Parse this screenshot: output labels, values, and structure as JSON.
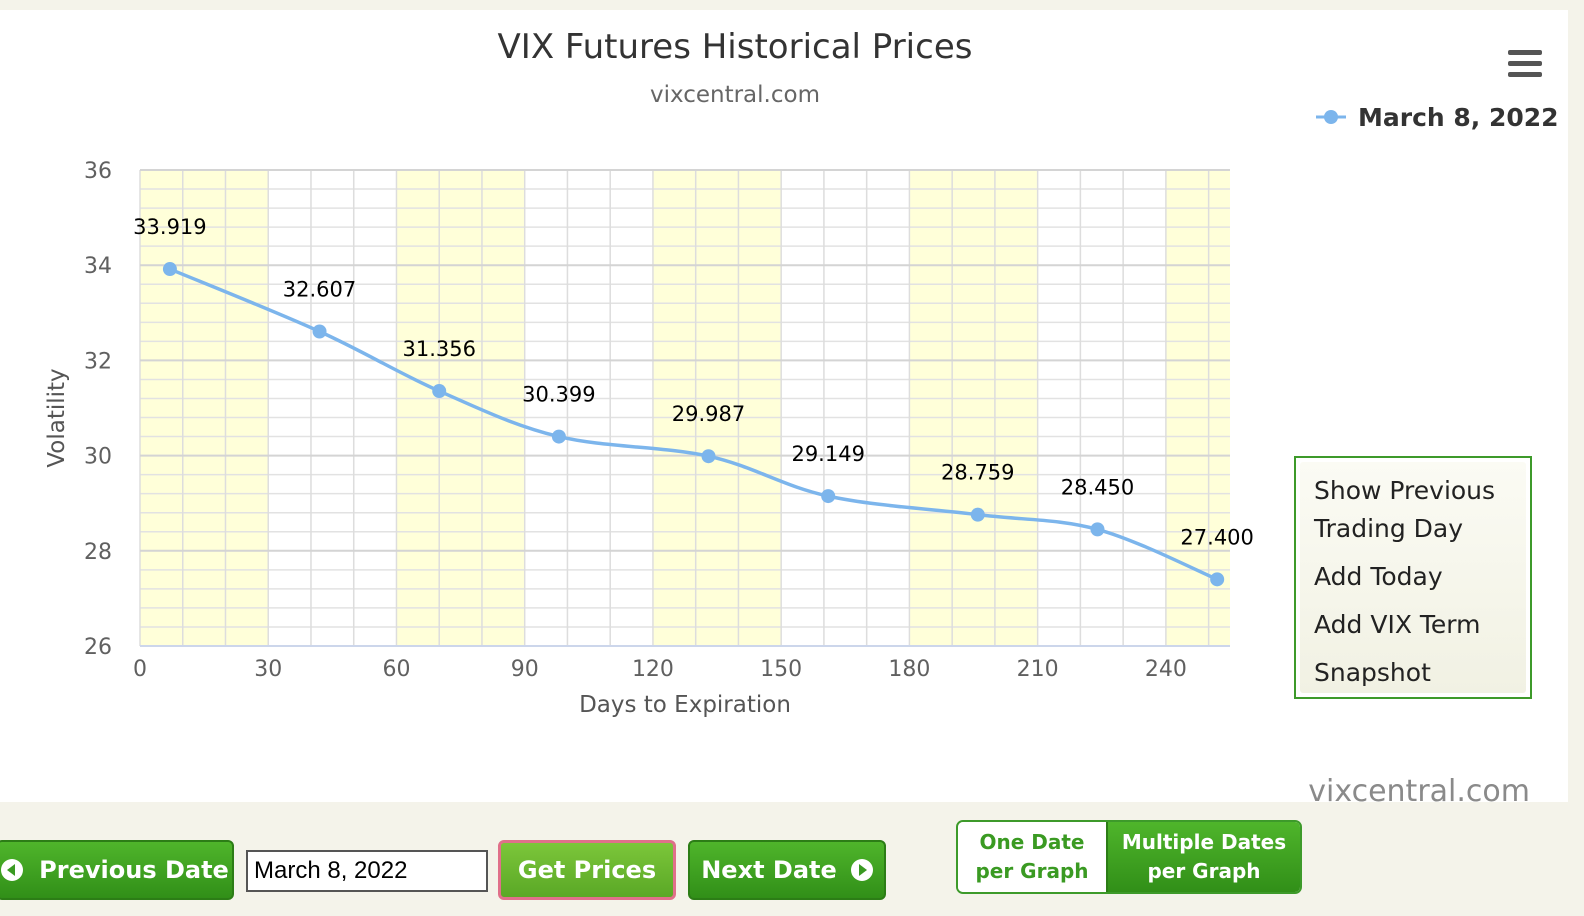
{
  "chart_data": {
    "type": "line",
    "title": "VIX Futures Historical Prices",
    "subtitle": "vixcentral.com",
    "xlabel": "Days to Expiration",
    "ylabel": "Volatility",
    "xlim": [
      0,
      255
    ],
    "ylim": [
      26,
      36
    ],
    "xticks": [
      0,
      30,
      60,
      90,
      120,
      150,
      180,
      210,
      240
    ],
    "yticks": [
      26,
      28,
      30,
      32,
      34,
      36
    ],
    "grid": true,
    "legend_position": "top-right",
    "series": [
      {
        "name": "March 8, 2022",
        "color": "#7cb5ec",
        "x": [
          7,
          42,
          70,
          98,
          133,
          161,
          196,
          224,
          252
        ],
        "y": [
          33.919,
          32.607,
          31.356,
          30.399,
          29.987,
          29.149,
          28.759,
          28.45,
          27.4
        ],
        "labels": [
          "33.919",
          "32.607",
          "31.356",
          "30.399",
          "29.987",
          "29.149",
          "28.759",
          "28.450",
          "27.400"
        ]
      }
    ]
  },
  "menu": {
    "items": [
      "Show Previous\nTrading Day",
      "Add Today",
      "Add VIX Term",
      "Snapshot"
    ]
  },
  "credit": "vixcentral.com",
  "controls": {
    "previous_label": "Previous Date",
    "date_value": "March 8, 2022",
    "get_prices_label": "Get Prices",
    "next_label": "Next Date",
    "one_date_label": "One Date\nper Graph",
    "multiple_dates_label": "Multiple Dates\nper Graph"
  },
  "colors": {
    "accent_green": "#3a9a22",
    "band_yellow": "#ffffd9",
    "series_blue": "#7cb5ec"
  }
}
